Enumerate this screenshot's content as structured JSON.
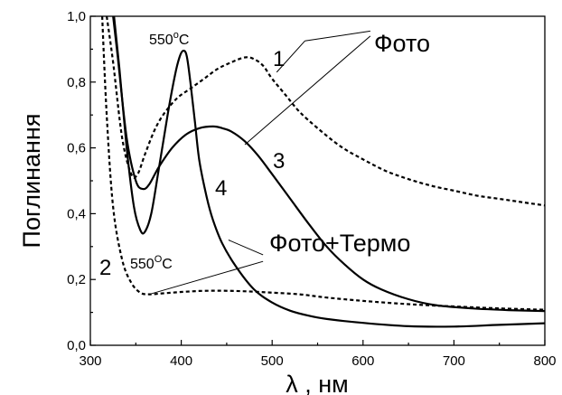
{
  "chart_data": {
    "type": "line",
    "title": "",
    "xlabel": "λ , нм",
    "ylabel": "Поглинання",
    "xlim": [
      300,
      800
    ],
    "ylim": [
      0.0,
      1.0
    ],
    "x_ticks": [
      "300",
      "400",
      "500",
      "600",
      "700",
      "800"
    ],
    "y_ticks": [
      "0,0",
      "0,2",
      "0,4",
      "0,6",
      "0,8",
      "1,0"
    ],
    "grid": false,
    "series": [
      {
        "name": "1",
        "style": "dashed",
        "color": "#000000",
        "x": [
          318,
          325,
          335,
          345,
          352,
          360,
          370,
          380,
          395,
          410,
          425,
          440,
          455,
          470,
          480,
          490,
          500,
          515,
          530,
          550,
          575,
          600,
          625,
          650,
          675,
          700,
          725,
          750,
          775,
          800
        ],
        "y": [
          1.0,
          0.86,
          0.63,
          0.52,
          0.52,
          0.58,
          0.65,
          0.7,
          0.75,
          0.78,
          0.81,
          0.84,
          0.86,
          0.875,
          0.87,
          0.85,
          0.81,
          0.76,
          0.71,
          0.66,
          0.605,
          0.565,
          0.53,
          0.505,
          0.485,
          0.47,
          0.455,
          0.445,
          0.435,
          0.425
        ]
      },
      {
        "name": "2",
        "style": "dashed",
        "color": "#000000",
        "x": [
          313,
          318,
          325,
          335,
          345,
          355,
          365,
          380,
          400,
          420,
          440,
          460,
          480,
          500,
          530,
          560,
          600,
          650,
          700,
          750,
          800
        ],
        "y": [
          1.0,
          0.7,
          0.42,
          0.26,
          0.19,
          0.16,
          0.155,
          0.158,
          0.162,
          0.165,
          0.166,
          0.165,
          0.163,
          0.16,
          0.155,
          0.145,
          0.135,
          0.125,
          0.118,
          0.112,
          0.108
        ]
      },
      {
        "name": "3",
        "style": "solid",
        "color": "#000000",
        "x": [
          325,
          330,
          340,
          350,
          358,
          365,
          375,
          390,
          405,
          420,
          435,
          445,
          455,
          470,
          485,
          500,
          520,
          540,
          560,
          580,
          600,
          620,
          650,
          680,
          720,
          760,
          800
        ],
        "y": [
          1.0,
          0.88,
          0.63,
          0.5,
          0.475,
          0.49,
          0.54,
          0.6,
          0.64,
          0.66,
          0.665,
          0.66,
          0.65,
          0.62,
          0.575,
          0.52,
          0.445,
          0.37,
          0.3,
          0.245,
          0.2,
          0.17,
          0.14,
          0.122,
          0.112,
          0.107,
          0.104
        ]
      },
      {
        "name": "4",
        "style": "solid",
        "color": "#000000",
        "x": [
          326,
          332,
          340,
          348,
          355,
          360,
          367,
          375,
          385,
          393,
          398,
          402,
          406,
          410,
          415,
          420,
          428,
          435,
          445,
          460,
          480,
          500,
          520,
          540,
          560,
          600,
          650,
          700,
          750,
          800
        ],
        "y": [
          1.0,
          0.84,
          0.6,
          0.42,
          0.35,
          0.345,
          0.4,
          0.53,
          0.7,
          0.82,
          0.875,
          0.895,
          0.88,
          0.8,
          0.68,
          0.56,
          0.45,
          0.38,
          0.31,
          0.24,
          0.17,
          0.13,
          0.105,
          0.09,
          0.08,
          0.068,
          0.058,
          0.057,
          0.062,
          0.067
        ]
      }
    ],
    "annotations": {
      "label_1": "1",
      "label_2": "2",
      "label_3": "3",
      "label_4": "4",
      "temp_top": "550",
      "temp_top_sup": "o",
      "temp_top_unit": "C",
      "temp_bottom": "550",
      "temp_bottom_sup": "O",
      "temp_bottom_unit": "C",
      "foto": "Фото",
      "foto_termo": "Фото+Термо"
    }
  }
}
